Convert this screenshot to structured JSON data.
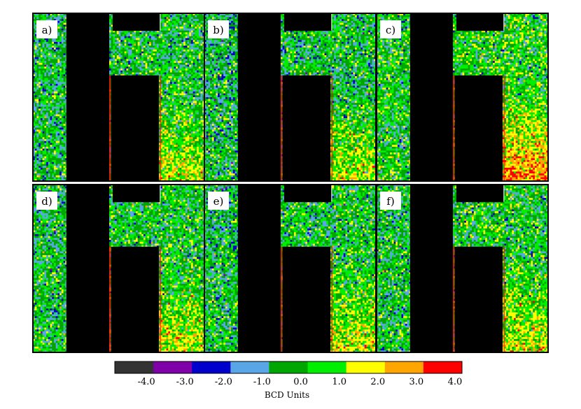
{
  "chart_data": {
    "type": "heatmap",
    "grid": {
      "rows": 2,
      "cols": 3
    },
    "panels": [
      {
        "label": "a)",
        "bias": 0.15,
        "hotspot": 1.8
      },
      {
        "label": "b)",
        "bias": 0.05,
        "hotspot": 1.7
      },
      {
        "label": "c)",
        "bias": 0.55,
        "hotspot": 2.8
      },
      {
        "label": "d)",
        "bias": 0.25,
        "hotspot": 1.6
      },
      {
        "label": "e)",
        "bias": 0.2,
        "hotspot": 1.7
      },
      {
        "label": "f)",
        "bias": 0.3,
        "hotspot": 1.6
      }
    ],
    "colorbar": {
      "label": "BCD Units",
      "ticks": [
        "-4.0",
        "-3.0",
        "-2.0",
        "-1.0",
        "0.0",
        "1.0",
        "2.0",
        "3.0",
        "4.0"
      ],
      "tick_values": [
        -4,
        -3,
        -2,
        -1,
        0,
        1,
        2,
        3,
        4
      ],
      "colors": [
        "#333333",
        "#7f00a8",
        "#0000cc",
        "#59a6e6",
        "#00a600",
        "#00ee00",
        "#ffff00",
        "#ffa500",
        "#ff0000"
      ],
      "masked_color": "#000000"
    }
  }
}
